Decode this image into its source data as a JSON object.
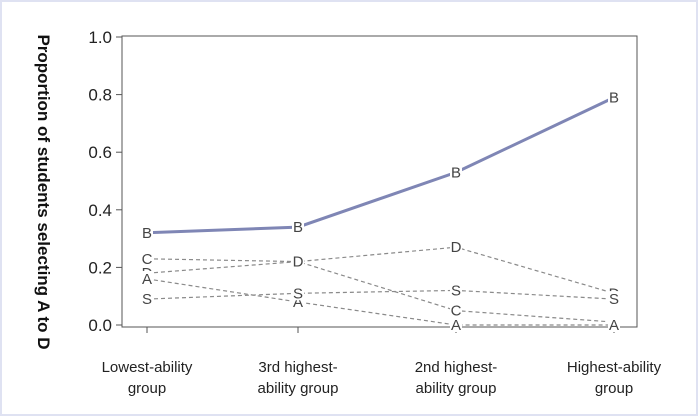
{
  "chart_data": {
    "type": "line",
    "ylabel": "Proportion of students selecting A to D",
    "ylim": [
      0,
      1.0
    ],
    "yticks": [
      "0.0",
      "0.2",
      "0.4",
      "0.6",
      "0.8",
      "1.0"
    ],
    "categories": [
      [
        "Lowest-ability",
        "group"
      ],
      [
        "3rd highest-",
        "ability group"
      ],
      [
        "2nd highest-",
        "ability group"
      ],
      [
        "Highest-ability",
        "group"
      ]
    ],
    "series": [
      {
        "name": "B",
        "values": [
          0.32,
          0.34,
          0.53,
          0.79
        ],
        "style": "solid",
        "color": "#7f86b5"
      },
      {
        "name": "C",
        "values": [
          0.23,
          0.22,
          0.05,
          0.01
        ],
        "style": "dashed",
        "color": "#8a8a8a"
      },
      {
        "name": "D",
        "values": [
          0.18,
          0.22,
          0.27,
          0.11
        ],
        "style": "dashed",
        "color": "#8a8a8a"
      },
      {
        "name": "A",
        "values": [
          0.16,
          0.08,
          0.0,
          0.0
        ],
        "style": "dashed",
        "color": "#8a8a8a"
      },
      {
        "name": "S",
        "values": [
          0.09,
          0.11,
          0.12,
          0.09
        ],
        "style": "dashed",
        "color": "#8a8a8a"
      }
    ],
    "grid": false,
    "legend": "none"
  }
}
